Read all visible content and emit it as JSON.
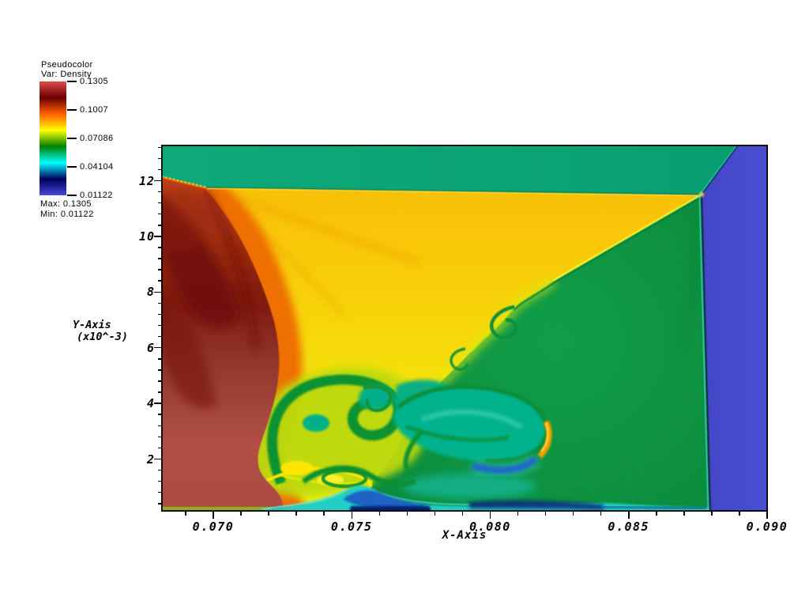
{
  "legend": {
    "title": "Pseudocolor",
    "var_label": "Var: Density",
    "tick_labels": [
      "0.1305",
      "0.1007",
      "0.07086",
      "0.04104",
      "0.01122"
    ],
    "max_label": "Max: 0.1305",
    "min_label": "Min: 0.01122"
  },
  "axes": {
    "x": {
      "label": "X-Axis",
      "ticks": [
        "0.070",
        "0.075",
        "0.080",
        "0.085",
        "0.090"
      ]
    },
    "y": {
      "label_line1": "Y-Axis",
      "label_line2": "(x10^-3)",
      "ticks": [
        "12",
        "10",
        "8",
        "6",
        "4",
        "2"
      ]
    }
  },
  "chart_data": {
    "type": "heatmap",
    "plot_type": "pseudocolor",
    "variable": "Density",
    "title": "Pseudocolor plot of Density (VisIt-style rendering)",
    "min": 0.01122,
    "max": 0.1305,
    "colorbar_tick_values": [
      0.1305,
      0.1007,
      0.07086,
      0.04104,
      0.01122
    ],
    "colormap": "hot_desaturated",
    "colormap_stops": [
      {
        "pos": 0.0,
        "color": "#4747db"
      },
      {
        "pos": 0.143,
        "color": "#00005c"
      },
      {
        "pos": 0.286,
        "color": "#00ffff"
      },
      {
        "pos": 0.429,
        "color": "#008000"
      },
      {
        "pos": 0.571,
        "color": "#ffff00"
      },
      {
        "pos": 0.714,
        "color": "#ff6000"
      },
      {
        "pos": 0.857,
        "color": "#6b0000"
      },
      {
        "pos": 1.0,
        "color": "#e04c4c"
      }
    ],
    "x_axis": {
      "label": "X-Axis",
      "tick_values": [
        0.07,
        0.075,
        0.08,
        0.085,
        0.09
      ],
      "minor_step": 0.001,
      "range_approx": [
        0.0681,
        0.09
      ],
      "grid": false
    },
    "y_axis": {
      "label": "Y-Axis (x10^-3)",
      "tick_values": [
        12,
        10,
        8,
        6,
        4,
        2
      ],
      "minor_step": 0.4,
      "scale_factor": "1e-3",
      "range_approx": [
        0.0001,
        0.0133
      ],
      "grid": false
    },
    "legend_position": "upper-left",
    "regions": [
      {
        "name": "top-band",
        "color": "#0ca578",
        "density_approx": 0.085,
        "desc": "emerald band along top edge"
      },
      {
        "name": "post-shock-yellow",
        "color": "#f8c708",
        "density_approx": 0.075,
        "desc": "large gold/yellow region behind incident shock"
      },
      {
        "name": "inflow-red-wedge",
        "color": "#a84a42",
        "density_approx": 0.12,
        "desc": "dark red/maroon wedge on left with orange rim"
      },
      {
        "name": "shocked-green",
        "color": "#0d9140",
        "density_approx": 0.065,
        "desc": "green region right of diagonal shock"
      },
      {
        "name": "ambient-blue",
        "color": "#4649ce",
        "density_approx": 0.015,
        "desc": "blue vertical band at right edge"
      },
      {
        "name": "vortex-street",
        "color": "#05b28b",
        "density_approx": 0.05,
        "desc": "Kelvin-Helmholtz vortex rollups near bottom center"
      },
      {
        "name": "wall-layer",
        "color": "#23cfc6",
        "density_approx": 0.035,
        "desc": "thin cyan layer with navy pockets along bottom wall"
      }
    ]
  }
}
